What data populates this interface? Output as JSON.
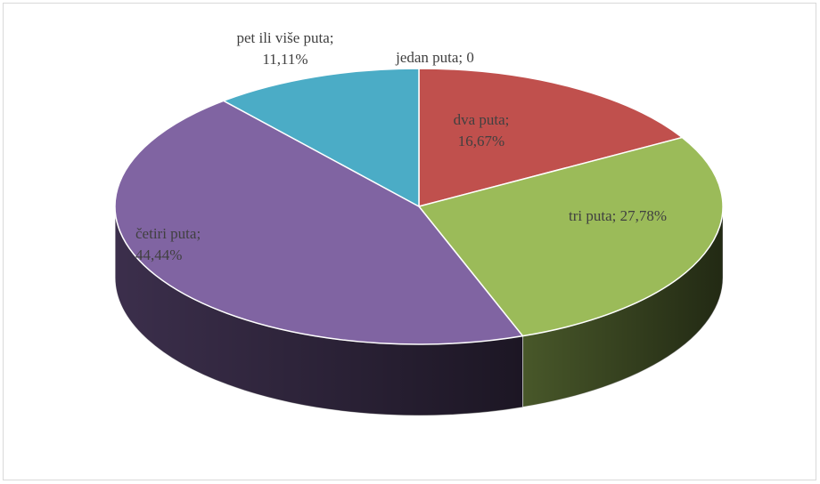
{
  "chart_data": {
    "type": "pie",
    "categories": [
      "jedan puta",
      "dva puta",
      "tri puta",
      "četiri puta",
      "pet ili više puta"
    ],
    "values": [
      0,
      16.67,
      27.78,
      44.44,
      11.11
    ],
    "value_labels": [
      "jedan puta; 0",
      "dva puta; 16,67%",
      "tri puta; 27,78%",
      "četiri puta; 44,44%",
      "pet ili više puta; 11,11%"
    ],
    "colors": [
      "#4f81bd",
      "#c0504d",
      "#9bbb59",
      "#8064a2",
      "#4bacc6"
    ],
    "three_d": true
  }
}
